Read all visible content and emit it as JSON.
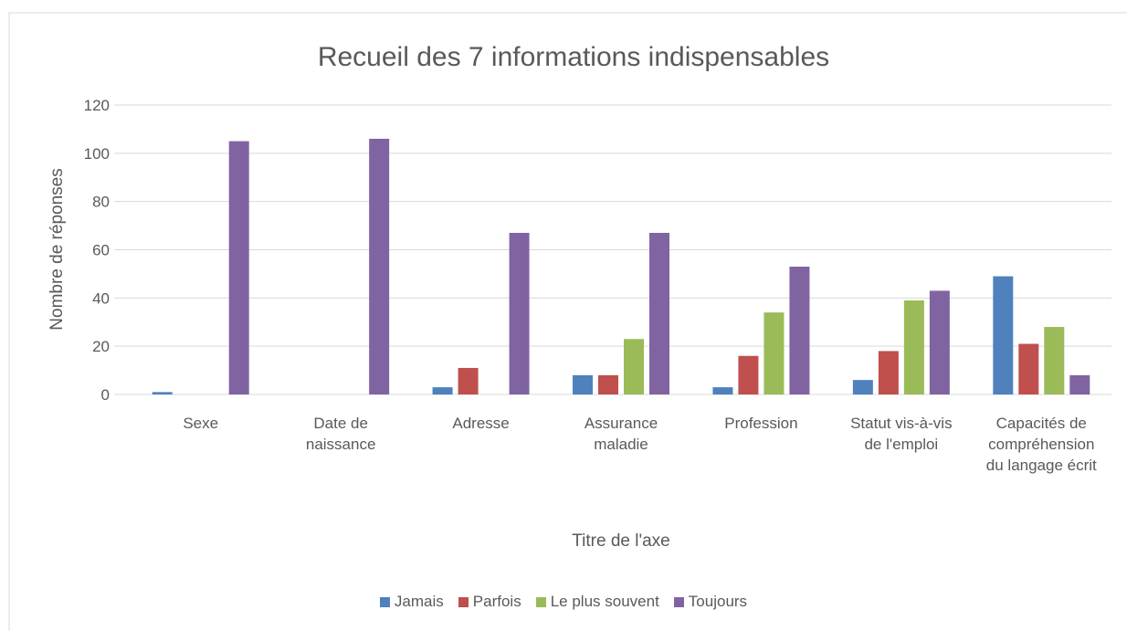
{
  "chart_data": {
    "type": "bar",
    "title": "Recueil des 7 informations indispensables",
    "x_label": "Titre de l'axe",
    "y_label": "Nombre de réponses",
    "categories": [
      "Sexe",
      "Date de naissance",
      "Adresse",
      "Assurance maladie",
      "Profession",
      "Statut vis-à-vis de l'emploi",
      "Capacités de compréhension du langage écrit"
    ],
    "series": [
      {
        "name": "Jamais",
        "color": "#4f81bd",
        "values": [
          1,
          0,
          3,
          8,
          3,
          6,
          49
        ]
      },
      {
        "name": "Parfois",
        "color": "#c0504d",
        "values": [
          0,
          0,
          11,
          8,
          16,
          18,
          21
        ]
      },
      {
        "name": "Le plus souvent",
        "color": "#9bbb59",
        "values": [
          0,
          0,
          0,
          23,
          34,
          39,
          28
        ]
      },
      {
        "name": "Toujours",
        "color": "#8064a2",
        "values": [
          105,
          106,
          67,
          67,
          53,
          43,
          8
        ]
      }
    ],
    "ylim": [
      0,
      120
    ],
    "yticks": [
      0,
      20,
      40,
      60,
      80,
      100,
      120
    ],
    "grid": true,
    "legend": "bottom"
  }
}
